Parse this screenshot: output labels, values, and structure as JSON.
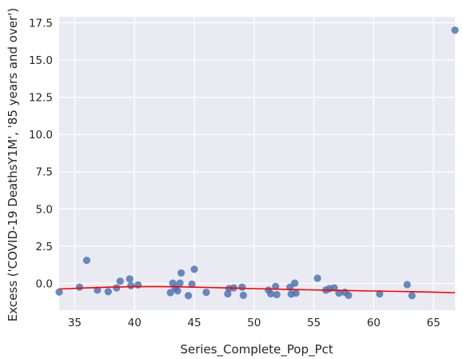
{
  "chart_data": {
    "type": "scatter",
    "xlabel": "Series_Complete_Pop_Pct",
    "ylabel": "Excess ('COVID-19 DeathsY1M', '85 years and over')",
    "xlim": [
      33.7,
      66.8
    ],
    "ylim": [
      -1.8,
      17.9
    ],
    "x_ticks": [
      "35",
      "40",
      "45",
      "50",
      "55",
      "60",
      "65"
    ],
    "x_tick_values": [
      35,
      40,
      45,
      50,
      55,
      60,
      65
    ],
    "y_ticks": [
      "0.0",
      "2.5",
      "5.0",
      "7.5",
      "10.0",
      "12.5",
      "15.0",
      "17.5"
    ],
    "y_tick_values": [
      0,
      2.5,
      5,
      7.5,
      10,
      12.5,
      15,
      17.5
    ],
    "grid": true,
    "background": "#eaeaf2",
    "point_color": "#4c72b0",
    "fit_color": "#ff0000",
    "points": [
      {
        "x": 33.7,
        "y": -0.58
      },
      {
        "x": 35.4,
        "y": -0.25
      },
      {
        "x": 36.0,
        "y": 1.55
      },
      {
        "x": 36.9,
        "y": -0.45
      },
      {
        "x": 37.8,
        "y": -0.55
      },
      {
        "x": 38.5,
        "y": -0.3
      },
      {
        "x": 38.8,
        "y": 0.15
      },
      {
        "x": 39.6,
        "y": 0.3
      },
      {
        "x": 39.7,
        "y": -0.15
      },
      {
        "x": 40.3,
        "y": -0.1
      },
      {
        "x": 43.0,
        "y": -0.62
      },
      {
        "x": 43.2,
        "y": 0.02
      },
      {
        "x": 43.4,
        "y": -0.3
      },
      {
        "x": 43.6,
        "y": -0.5
      },
      {
        "x": 43.8,
        "y": 0.02
      },
      {
        "x": 43.9,
        "y": 0.7
      },
      {
        "x": 44.5,
        "y": -0.82
      },
      {
        "x": 44.8,
        "y": -0.05
      },
      {
        "x": 45.0,
        "y": 0.95
      },
      {
        "x": 46.0,
        "y": -0.6
      },
      {
        "x": 47.8,
        "y": -0.7
      },
      {
        "x": 47.9,
        "y": -0.35
      },
      {
        "x": 48.3,
        "y": -0.3
      },
      {
        "x": 49.0,
        "y": -0.25
      },
      {
        "x": 49.1,
        "y": -0.8
      },
      {
        "x": 51.2,
        "y": -0.45
      },
      {
        "x": 51.4,
        "y": -0.7
      },
      {
        "x": 51.8,
        "y": -0.2
      },
      {
        "x": 51.9,
        "y": -0.75
      },
      {
        "x": 53.0,
        "y": -0.25
      },
      {
        "x": 53.1,
        "y": -0.72
      },
      {
        "x": 53.4,
        "y": 0.02
      },
      {
        "x": 53.5,
        "y": -0.65
      },
      {
        "x": 55.3,
        "y": 0.35
      },
      {
        "x": 56.0,
        "y": -0.45
      },
      {
        "x": 56.3,
        "y": -0.35
      },
      {
        "x": 56.7,
        "y": -0.3
      },
      {
        "x": 57.1,
        "y": -0.65
      },
      {
        "x": 57.6,
        "y": -0.6
      },
      {
        "x": 57.9,
        "y": -0.8
      },
      {
        "x": 60.5,
        "y": -0.7
      },
      {
        "x": 62.8,
        "y": -0.08
      },
      {
        "x": 63.2,
        "y": -0.82
      },
      {
        "x": 66.8,
        "y": 17.0
      }
    ],
    "fit_line": [
      {
        "x": 33.7,
        "y": -0.38
      },
      {
        "x": 36.0,
        "y": -0.3
      },
      {
        "x": 38.0,
        "y": -0.25
      },
      {
        "x": 40.0,
        "y": -0.22
      },
      {
        "x": 42.0,
        "y": -0.21
      },
      {
        "x": 44.0,
        "y": -0.23
      },
      {
        "x": 46.0,
        "y": -0.27
      },
      {
        "x": 48.0,
        "y": -0.31
      },
      {
        "x": 50.0,
        "y": -0.35
      },
      {
        "x": 52.0,
        "y": -0.39
      },
      {
        "x": 54.0,
        "y": -0.42
      },
      {
        "x": 56.0,
        "y": -0.45
      },
      {
        "x": 58.0,
        "y": -0.48
      },
      {
        "x": 60.0,
        "y": -0.51
      },
      {
        "x": 62.0,
        "y": -0.54
      },
      {
        "x": 64.0,
        "y": -0.57
      },
      {
        "x": 66.8,
        "y": -0.62
      }
    ]
  }
}
